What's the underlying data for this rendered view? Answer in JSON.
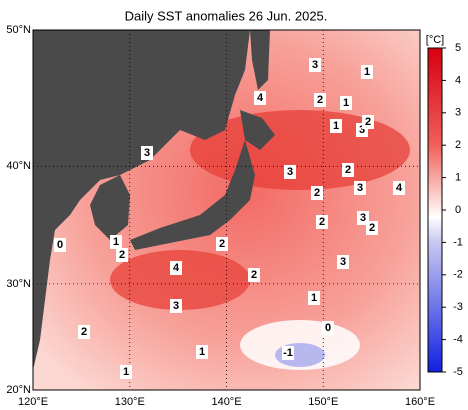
{
  "map_data": {
    "title": "Daily SST anomalies 26 Jun. 2025.",
    "unit": "[°C]",
    "lon_ticks": [
      {
        "value": 120,
        "label": "120°E"
      },
      {
        "value": 130,
        "label": "130°E"
      },
      {
        "value": 140,
        "label": "140°E"
      },
      {
        "value": 150,
        "label": "150°E"
      },
      {
        "value": 160,
        "label": "160°E"
      }
    ],
    "lat_ticks": [
      {
        "value": 50,
        "label": "50°N"
      },
      {
        "value": 40,
        "label": "40°N"
      },
      {
        "value": 30,
        "label": "30°N"
      },
      {
        "value": 20,
        "label": "20°N"
      }
    ],
    "colorbar_ticks": [
      5,
      4,
      3,
      2,
      1,
      0,
      -1,
      -2,
      -3,
      -4,
      -5
    ],
    "contour_labels": [
      3,
      1,
      4,
      2,
      1,
      1,
      3,
      2,
      3,
      3,
      2,
      2,
      3,
      4,
      2,
      3,
      2,
      0,
      1,
      2,
      2,
      3,
      4,
      2,
      1,
      3,
      0,
      2,
      1,
      -1,
      1
    ]
  }
}
